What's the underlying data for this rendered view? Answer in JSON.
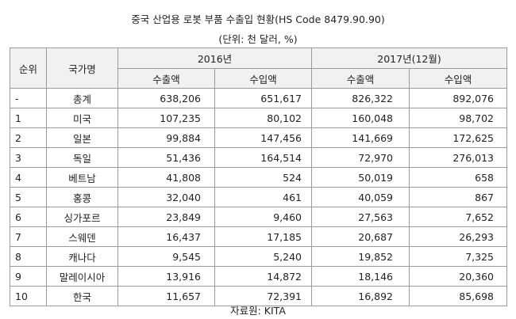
{
  "title": "중국 산업용 로봇 부품 수출입 현황(HS Code 8479.90.90)",
  "unit": "(단위: 천 달러, %)",
  "headers": {
    "rank": "순위",
    "country": "국가명",
    "year2016": "2016년",
    "year2017": "2017년(12월)",
    "export": "수출액",
    "import": "수입액"
  },
  "rows": [
    {
      "rank": "-",
      "country": "총계",
      "e2016": "638,206",
      "i2016": "651,617",
      "e2017": "826,322",
      "i2017": "892,076"
    },
    {
      "rank": "1",
      "country": "미국",
      "e2016": "107,235",
      "i2016": "80,102",
      "e2017": "160,048",
      "i2017": "98,702"
    },
    {
      "rank": "2",
      "country": "일본",
      "e2016": "99,884",
      "i2016": "147,456",
      "e2017": "141,669",
      "i2017": "172,625"
    },
    {
      "rank": "3",
      "country": "독일",
      "e2016": "51,436",
      "i2016": "164,514",
      "e2017": "72,970",
      "i2017": "276,013"
    },
    {
      "rank": "4",
      "country": "베트남",
      "e2016": "41,808",
      "i2016": "524",
      "e2017": "50,019",
      "i2017": "658"
    },
    {
      "rank": "5",
      "country": "홍콩",
      "e2016": "32,040",
      "i2016": "461",
      "e2017": "40,059",
      "i2017": "867"
    },
    {
      "rank": "6",
      "country": "싱가포르",
      "e2016": "23,849",
      "i2016": "9,460",
      "e2017": "27,563",
      "i2017": "7,652"
    },
    {
      "rank": "7",
      "country": "스웨덴",
      "e2016": "16,437",
      "i2016": "17,185",
      "e2017": "20,687",
      "i2017": "26,293"
    },
    {
      "rank": "8",
      "country": "캐나다",
      "e2016": "9,545",
      "i2016": "5,240",
      "e2017": "19,852",
      "i2017": "7,325"
    },
    {
      "rank": "9",
      "country": "말레이시아",
      "e2016": "13,916",
      "i2016": "14,872",
      "e2017": "18,146",
      "i2017": "20,360"
    },
    {
      "rank": "10",
      "country": "한국",
      "e2016": "11,657",
      "i2016": "72,391",
      "e2017": "16,892",
      "i2017": "85,698"
    }
  ],
  "source": "자료원: KITA"
}
